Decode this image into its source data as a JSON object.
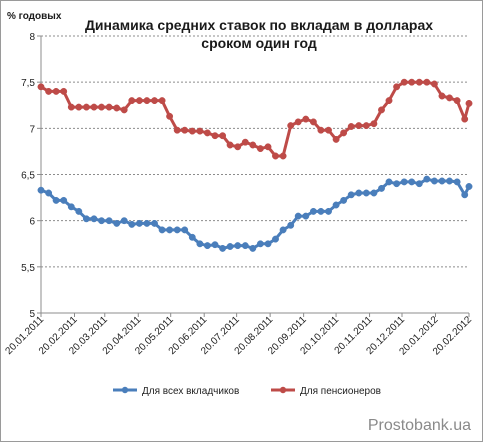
{
  "chart_data": {
    "type": "line",
    "title": "Динамика средних ставок по вкладам в долларах сроком один год",
    "title_lines": [
      "Динамика средних ставок по вкладам в долларах",
      "сроком один год"
    ],
    "ylabel": "% годовых",
    "xlabel": "",
    "ylim": [
      5,
      8
    ],
    "yticks": [
      5,
      5.5,
      6,
      6.5,
      7,
      7.5,
      8
    ],
    "ytick_labels": [
      "5",
      "5,5",
      "6",
      "6,5",
      "7",
      "7,5",
      "8"
    ],
    "xlim": [
      "2011-01-20",
      "2012-02-20"
    ],
    "x_tick_labels": [
      "20.01.2011",
      "20.02.2011",
      "20.03.2011",
      "20.04.2011",
      "20.05.2011",
      "20.06.2011",
      "20.07.2011",
      "20.08.2011",
      "20.09.2011",
      "20.10.2011",
      "20.11.2011",
      "20.12.2011",
      "20.01.2012",
      "20.02.2012"
    ],
    "grid": "horizontal",
    "legend_position": "bottom",
    "x": [
      "2011-01-20",
      "2011-01-27",
      "2011-02-03",
      "2011-02-10",
      "2011-02-17",
      "2011-02-24",
      "2011-03-03",
      "2011-03-10",
      "2011-03-17",
      "2011-03-24",
      "2011-03-31",
      "2011-04-07",
      "2011-04-14",
      "2011-04-21",
      "2011-04-28",
      "2011-05-05",
      "2011-05-12",
      "2011-05-19",
      "2011-05-26",
      "2011-06-02",
      "2011-06-09",
      "2011-06-16",
      "2011-06-23",
      "2011-06-30",
      "2011-07-07",
      "2011-07-14",
      "2011-07-21",
      "2011-07-28",
      "2011-08-04",
      "2011-08-11",
      "2011-08-18",
      "2011-08-25",
      "2011-09-01",
      "2011-09-08",
      "2011-09-15",
      "2011-09-22",
      "2011-09-29",
      "2011-10-06",
      "2011-10-13",
      "2011-10-20",
      "2011-10-27",
      "2011-11-03",
      "2011-11-10",
      "2011-11-17",
      "2011-11-24",
      "2011-12-01",
      "2011-12-08",
      "2011-12-15",
      "2011-12-22",
      "2011-12-29",
      "2012-01-05",
      "2012-01-12",
      "2012-01-19",
      "2012-01-26",
      "2012-02-02",
      "2012-02-09",
      "2012-02-16",
      "2012-02-20"
    ],
    "series": [
      {
        "name": "Для всех вкладчиков",
        "color": "#4a7ebb",
        "values": [
          6.33,
          6.3,
          6.22,
          6.22,
          6.15,
          6.1,
          6.02,
          6.02,
          6.0,
          6.0,
          5.97,
          6.0,
          5.96,
          5.97,
          5.97,
          5.97,
          5.9,
          5.9,
          5.9,
          5.9,
          5.82,
          5.75,
          5.73,
          5.74,
          5.7,
          5.72,
          5.73,
          5.73,
          5.7,
          5.75,
          5.75,
          5.8,
          5.9,
          5.95,
          6.05,
          6.05,
          6.1,
          6.1,
          6.1,
          6.17,
          6.22,
          6.28,
          6.3,
          6.3,
          6.3,
          6.35,
          6.42,
          6.4,
          6.42,
          6.42,
          6.4,
          6.45,
          6.43,
          6.43,
          6.43,
          6.42,
          6.28,
          6.37
        ]
      },
      {
        "name": "Для пенсионеров",
        "color": "#be4b48",
        "values": [
          7.45,
          7.4,
          7.4,
          7.4,
          7.23,
          7.23,
          7.23,
          7.23,
          7.23,
          7.23,
          7.22,
          7.2,
          7.3,
          7.3,
          7.3,
          7.3,
          7.3,
          7.13,
          6.98,
          6.98,
          6.97,
          6.97,
          6.95,
          6.92,
          6.92,
          6.82,
          6.8,
          6.85,
          6.82,
          6.78,
          6.8,
          6.7,
          6.7,
          7.03,
          7.07,
          7.1,
          7.07,
          6.98,
          6.98,
          6.88,
          6.95,
          7.02,
          7.03,
          7.03,
          7.05,
          7.2,
          7.3,
          7.45,
          7.5,
          7.5,
          7.5,
          7.5,
          7.48,
          7.35,
          7.33,
          7.3,
          7.1,
          7.27
        ]
      }
    ]
  },
  "watermark": "Prostobank.ua"
}
